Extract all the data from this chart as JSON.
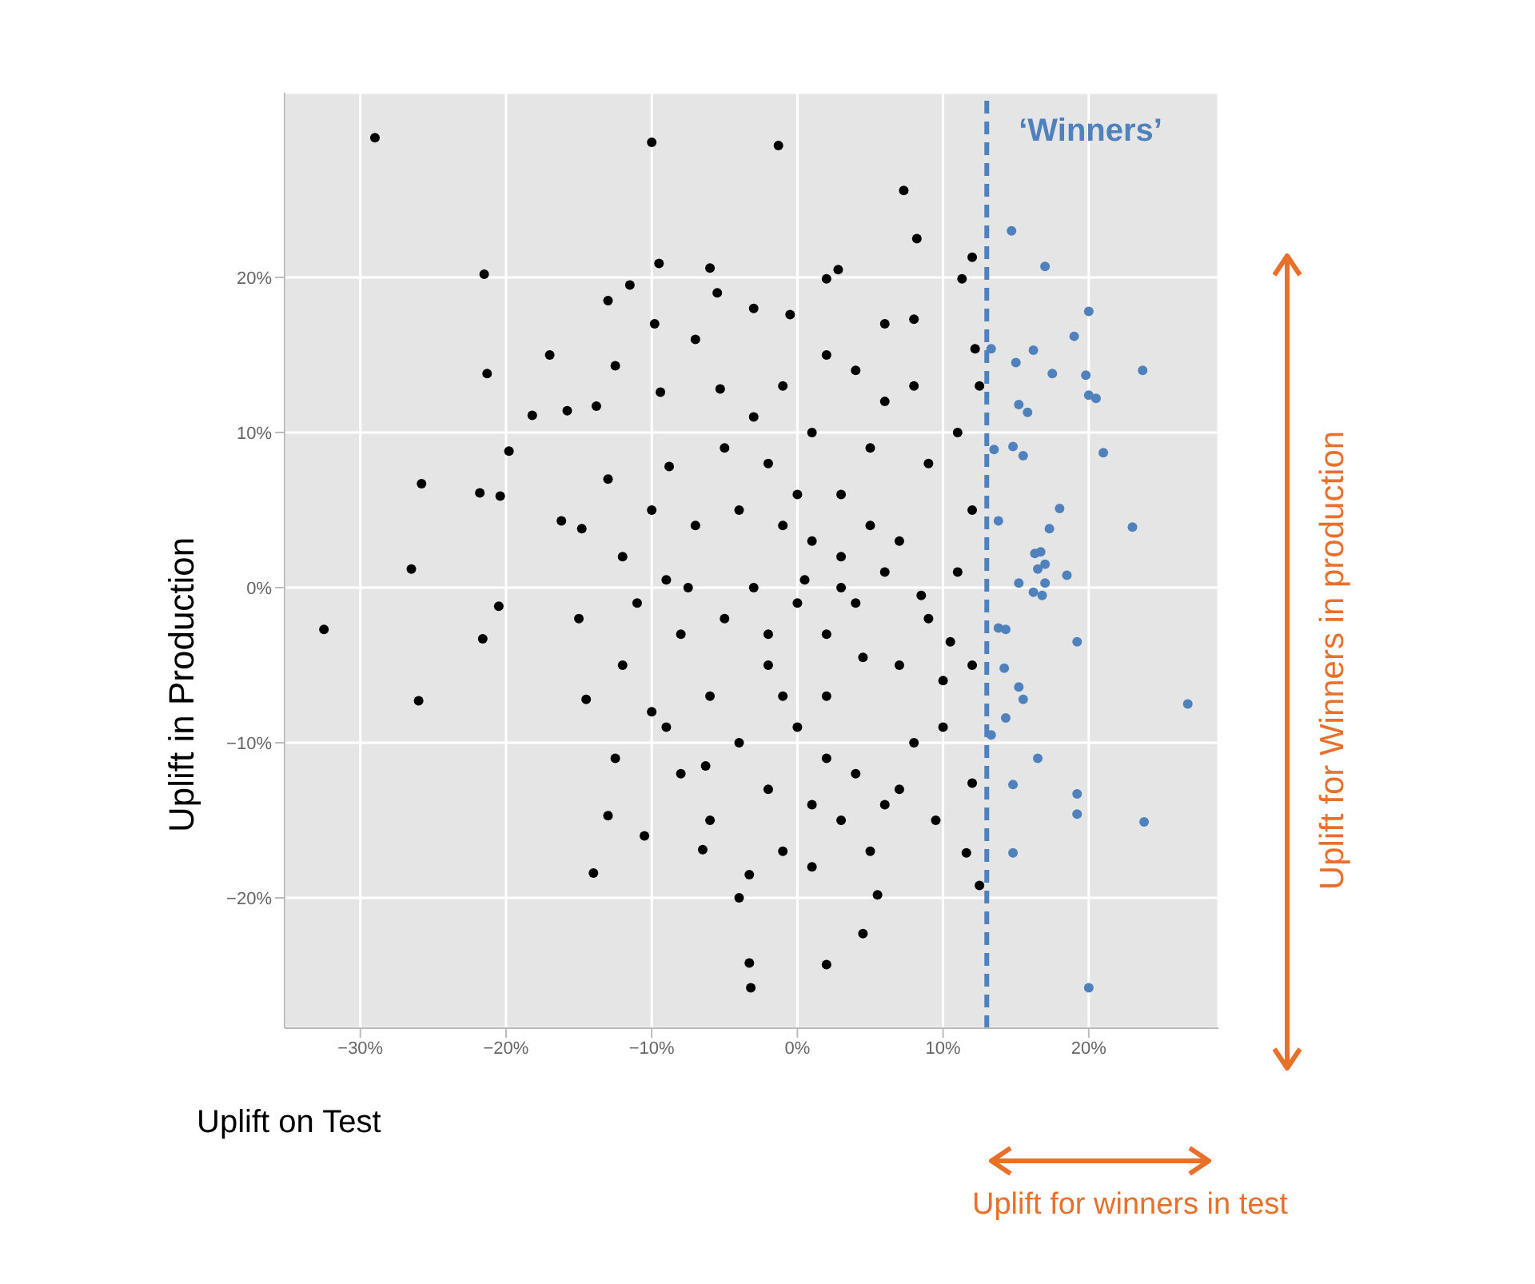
{
  "chart_data": {
    "type": "scatter",
    "xlabel": "Uplift on Test",
    "ylabel": "Uplift in Production",
    "xlim": [
      -35.2,
      28.9
    ],
    "ylim": [
      -28.4,
      31.9
    ],
    "xticks": [
      {
        "value": -30,
        "label": "−30%"
      },
      {
        "value": -20,
        "label": "−20%"
      },
      {
        "value": -10,
        "label": "−10%"
      },
      {
        "value": 0,
        "label": "0%"
      },
      {
        "value": 10,
        "label": "10%"
      },
      {
        "value": 20,
        "label": "20%"
      }
    ],
    "yticks": [
      {
        "value": -20,
        "label": "−20%"
      },
      {
        "value": -10,
        "label": "−10%"
      },
      {
        "value": 0,
        "label": "0%"
      },
      {
        "value": 10,
        "label": "10%"
      },
      {
        "value": 20,
        "label": "20%"
      }
    ],
    "grid": true,
    "marker": "circle",
    "ref_lines": [
      {
        "axis": "x",
        "value": 13,
        "label": "‘Winners’",
        "color": "#4f81bd",
        "line_style": "dashed"
      }
    ],
    "annotations": [
      "Uplift for Winners in production",
      "Uplift for winners in test"
    ],
    "series": [
      {
        "color": "#000000",
        "x": [
          -32.5,
          -29,
          -26.5,
          -26,
          -25.8,
          -21.5,
          -21.8,
          -21.6,
          -21.3,
          -20.5,
          -20.4,
          -19.8,
          -18.2,
          -17,
          -16.2,
          -15.8,
          -14.8,
          -14.5,
          -14,
          -13.8,
          -13,
          -12.5,
          -13,
          -12.5,
          -11.5,
          -10.5,
          -10,
          -9.5,
          -9.8,
          -9.4,
          -8.8,
          -7.5,
          -6.5,
          -6.3,
          -6,
          -5.5,
          -5.3,
          -3.3,
          -3.2,
          -3.3,
          -1.3,
          -0.5,
          2,
          2.8,
          2,
          4.5,
          5.5,
          7.3,
          8.2,
          8,
          11.3,
          12,
          12.5,
          11.6,
          12,
          9.5,
          -5,
          -3,
          -2,
          0,
          1,
          2,
          3,
          4,
          -4,
          -2,
          1,
          3,
          5,
          -7,
          -8,
          -9,
          -6,
          -4,
          -2,
          0,
          2,
          4,
          6,
          8,
          10,
          9,
          11,
          7,
          9,
          6,
          4,
          2,
          -1,
          -3,
          -5,
          -10,
          -11,
          -12,
          -10,
          -8,
          -6,
          -1,
          1,
          3,
          5,
          7,
          10,
          12,
          12,
          11,
          8,
          6,
          -1,
          0,
          2,
          -7,
          -3,
          7,
          5,
          -12,
          -13,
          -15,
          -9,
          1,
          -4,
          6,
          3,
          -1,
          -2,
          0.5,
          4.5,
          8.5,
          12.2,
          12.5,
          10.5
        ],
        "values": [
          -2.7,
          29,
          1.2,
          -7.3,
          6.7,
          20.2,
          6.1,
          -3.3,
          13.8,
          -1.2,
          5.9,
          8.8,
          11.1,
          15,
          4.3,
          11.4,
          3.8,
          -7.2,
          -18.4,
          11.7,
          18.5,
          14.3,
          -14.7,
          -11,
          19.5,
          -16,
          28.7,
          20.9,
          17,
          12.6,
          7.8,
          0,
          -16.9,
          -11.5,
          20.6,
          19,
          12.8,
          -24.2,
          -25.8,
          -18.5,
          28.5,
          17.6,
          19.9,
          20.5,
          -24.3,
          -22.3,
          -19.8,
          25.6,
          22.5,
          17.3,
          19.9,
          21.3,
          -19.2,
          -17.1,
          -12.6,
          -15,
          -2,
          0,
          -5,
          -1,
          3,
          -3,
          0,
          -1,
          5,
          8,
          10,
          6,
          4,
          4,
          -3,
          -9,
          -7,
          -10,
          -13,
          -9,
          -7,
          -12,
          -14,
          -10,
          -6,
          -2,
          1,
          3,
          8,
          12,
          14,
          15,
          13,
          11,
          9,
          5,
          -1,
          -5,
          -8,
          -12,
          -15,
          -17,
          -18,
          -15,
          -17,
          -13,
          -9,
          -5,
          5,
          10,
          13,
          17,
          4,
          6,
          -11,
          16,
          18,
          -5,
          9,
          2,
          7,
          -2,
          0.5,
          -14,
          -20,
          1,
          2,
          -7,
          -3,
          0.5,
          -4.5,
          -0.5,
          15.4,
          13,
          -3.5
        ]
      },
      {
        "color": "#4f81bd",
        "x": [
          14.7,
          17,
          20,
          19,
          15,
          16.2,
          13.3,
          15.2,
          15.8,
          17.5,
          19.8,
          20,
          20.5,
          23.7,
          14.8,
          15.5,
          13.5,
          21,
          18,
          13.8,
          17.3,
          16.7,
          17,
          16.5,
          16.3,
          17,
          18.5,
          15.2,
          16.2,
          16.8,
          23,
          13.8,
          14.3,
          19.2,
          15.2,
          15.5,
          14.3,
          13.3,
          26.8,
          16.5,
          14.8,
          19.2,
          19.2,
          23.8,
          14.8,
          20,
          14.2
        ],
        "values": [
          23,
          20.7,
          17.8,
          16.2,
          14.5,
          15.3,
          15.4,
          11.8,
          11.3,
          13.8,
          13.7,
          12.4,
          12.2,
          14,
          9.1,
          8.5,
          8.9,
          8.7,
          5.1,
          4.3,
          3.8,
          2.3,
          1.5,
          1.2,
          2.2,
          0.3,
          0.8,
          0.3,
          -0.3,
          -0.5,
          3.9,
          -2.6,
          -2.7,
          -3.5,
          -6.4,
          -7.2,
          -8.4,
          -9.5,
          -7.5,
          -11,
          -12.7,
          -13.3,
          -14.6,
          -15.1,
          -17.1,
          -25.8,
          -5.2
        ]
      }
    ]
  }
}
